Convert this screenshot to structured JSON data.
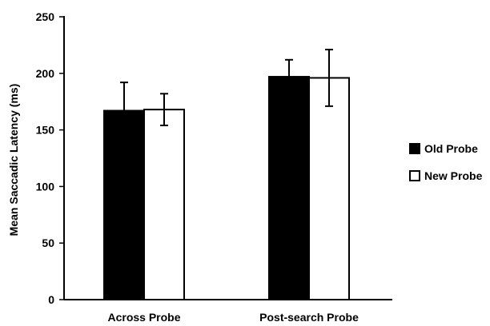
{
  "chart_data": {
    "type": "bar",
    "categories": [
      "Across Probe",
      "Post-search Probe"
    ],
    "series": [
      {
        "name": "Old Probe",
        "color": "#000000",
        "values": [
          167,
          197
        ],
        "error_upper": [
          192,
          212
        ],
        "error_lower": [
          142,
          182
        ]
      },
      {
        "name": "New Probe",
        "color": "#ffffff",
        "values": [
          168,
          196
        ],
        "error_upper": [
          182,
          221
        ],
        "error_lower": [
          154,
          171
        ]
      }
    ],
    "ylabel": "Mean Saccadic Latency (ms)",
    "xlabel": "",
    "ylim": [
      0,
      250
    ],
    "yticks": [
      0,
      50,
      100,
      150,
      200,
      250
    ],
    "grid": false,
    "legend_position": "right"
  }
}
